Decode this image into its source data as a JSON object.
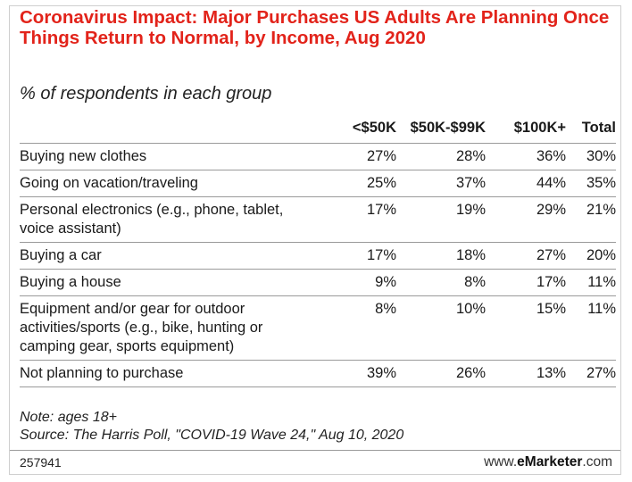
{
  "chart_data": {
    "type": "table",
    "title": "Coronavirus Impact: Major Purchases US Adults Are Planning Once Things Return to Normal, by Income, Aug 2020",
    "subtitle": "% of respondents in each group",
    "columns": [
      "",
      "<$50K",
      "$50K-$99K",
      "$100K+",
      "Total"
    ],
    "rows": [
      {
        "label": "Buying new clothes",
        "values": [
          "27%",
          "28%",
          "36%",
          "30%"
        ]
      },
      {
        "label": "Going on vacation/traveling",
        "values": [
          "25%",
          "37%",
          "44%",
          "35%"
        ]
      },
      {
        "label": "Personal electronics (e.g., phone, tablet, voice assistant)",
        "values": [
          "17%",
          "19%",
          "29%",
          "21%"
        ]
      },
      {
        "label": "Buying a car",
        "values": [
          "17%",
          "18%",
          "27%",
          "20%"
        ]
      },
      {
        "label": "Buying a house",
        "values": [
          "9%",
          "8%",
          "17%",
          "11%"
        ]
      },
      {
        "label": "Equipment and/or gear for outdoor activities/sports (e.g., bike, hunting or camping gear, sports equipment)",
        "values": [
          "8%",
          "10%",
          "15%",
          "11%"
        ]
      },
      {
        "label": "Not planning to purchase",
        "values": [
          "39%",
          "26%",
          "13%",
          "27%"
        ]
      }
    ],
    "note": "Note: ages 18+",
    "source": "Source: The Harris Poll, \"COVID-19 Wave 24,\" Aug 10, 2020",
    "chart_id": "257941",
    "brand_prefix": "www.",
    "brand_name": "eMarketer",
    "brand_suffix": ".com",
    "colors": {
      "title": "#e2231a",
      "rule": "#9a9a9a"
    }
  }
}
